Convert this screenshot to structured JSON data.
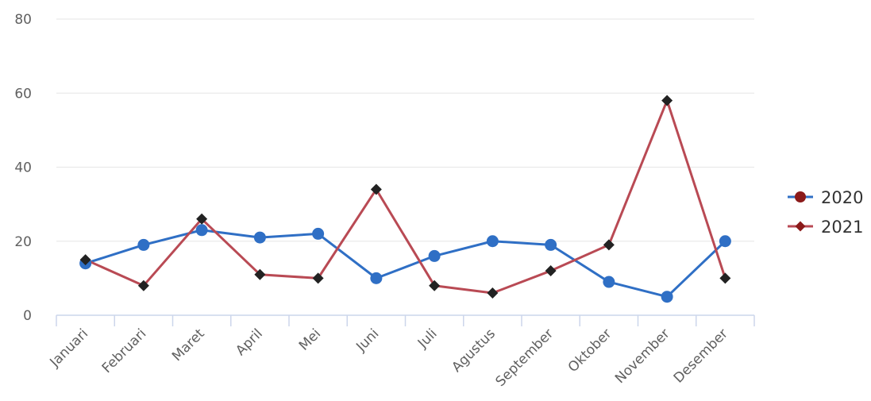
{
  "chart_data": {
    "type": "line",
    "categories": [
      "Januari",
      "Februari",
      "Maret",
      "April",
      "Mei",
      "Juni",
      "Juli",
      "Agustus",
      "September",
      "Oktober",
      "November",
      "Desember"
    ],
    "ylim": [
      0,
      80
    ],
    "y_ticks": [
      0,
      20,
      40,
      60,
      80
    ],
    "grid": true,
    "legend_position": "right",
    "series": [
      {
        "name": "2020",
        "color": "#2f6fc5",
        "marker": "circle",
        "values": [
          14,
          19,
          23,
          21,
          22,
          10,
          16,
          20,
          19,
          9,
          5,
          20
        ]
      },
      {
        "name": "2021",
        "color": "#b94a54",
        "marker": "diamond",
        "values": [
          15,
          8,
          26,
          11,
          10,
          34,
          8,
          6,
          12,
          19,
          58,
          10
        ]
      }
    ]
  },
  "legend": {
    "items": [
      {
        "label": "2020",
        "line_color": "#2f6fc5",
        "marker_color": "#8b1a1a",
        "marker": "circle"
      },
      {
        "label": "2021",
        "line_color": "#b94a54",
        "marker_color": "#8b1a1a",
        "marker": "diamond"
      }
    ]
  }
}
